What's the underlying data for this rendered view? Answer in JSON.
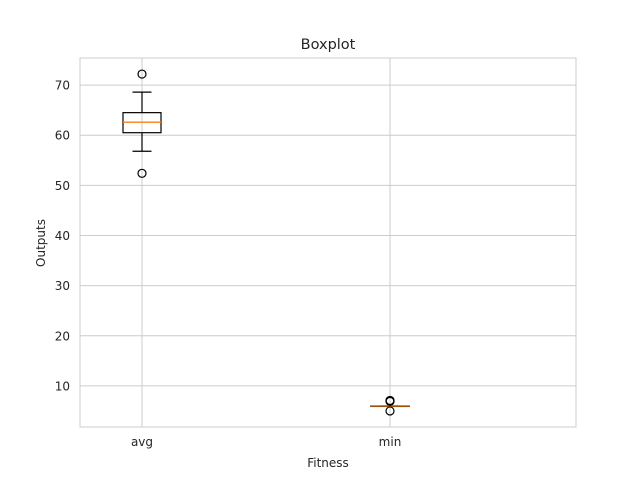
{
  "chart_data": {
    "type": "boxplot",
    "title": "Boxplot",
    "xlabel": "Fitness",
    "ylabel": "Outputs",
    "ylim": [
      1.8,
      75.4
    ],
    "yticks": [
      10,
      20,
      30,
      40,
      50,
      60,
      70
    ],
    "grid": true,
    "categories": [
      "avg",
      "min"
    ],
    "boxes": [
      {
        "label": "avg",
        "whisker_low": 56.8,
        "q1": 60.5,
        "median": 62.6,
        "q3": 64.5,
        "whisker_high": 68.6,
        "fliers": [
          72.2,
          52.4
        ]
      },
      {
        "label": "min",
        "whisker_low": 6.0,
        "q1": 6.0,
        "median": 6.0,
        "q3": 6.0,
        "whisker_high": 6.0,
        "fliers": [
          7.0,
          7.1,
          6.9,
          5.0
        ]
      }
    ],
    "colors": {
      "box": "#000000",
      "median": "#ff7f0e",
      "grid": "#cccccc",
      "frame": "#cccccc",
      "text": "#262626"
    }
  }
}
